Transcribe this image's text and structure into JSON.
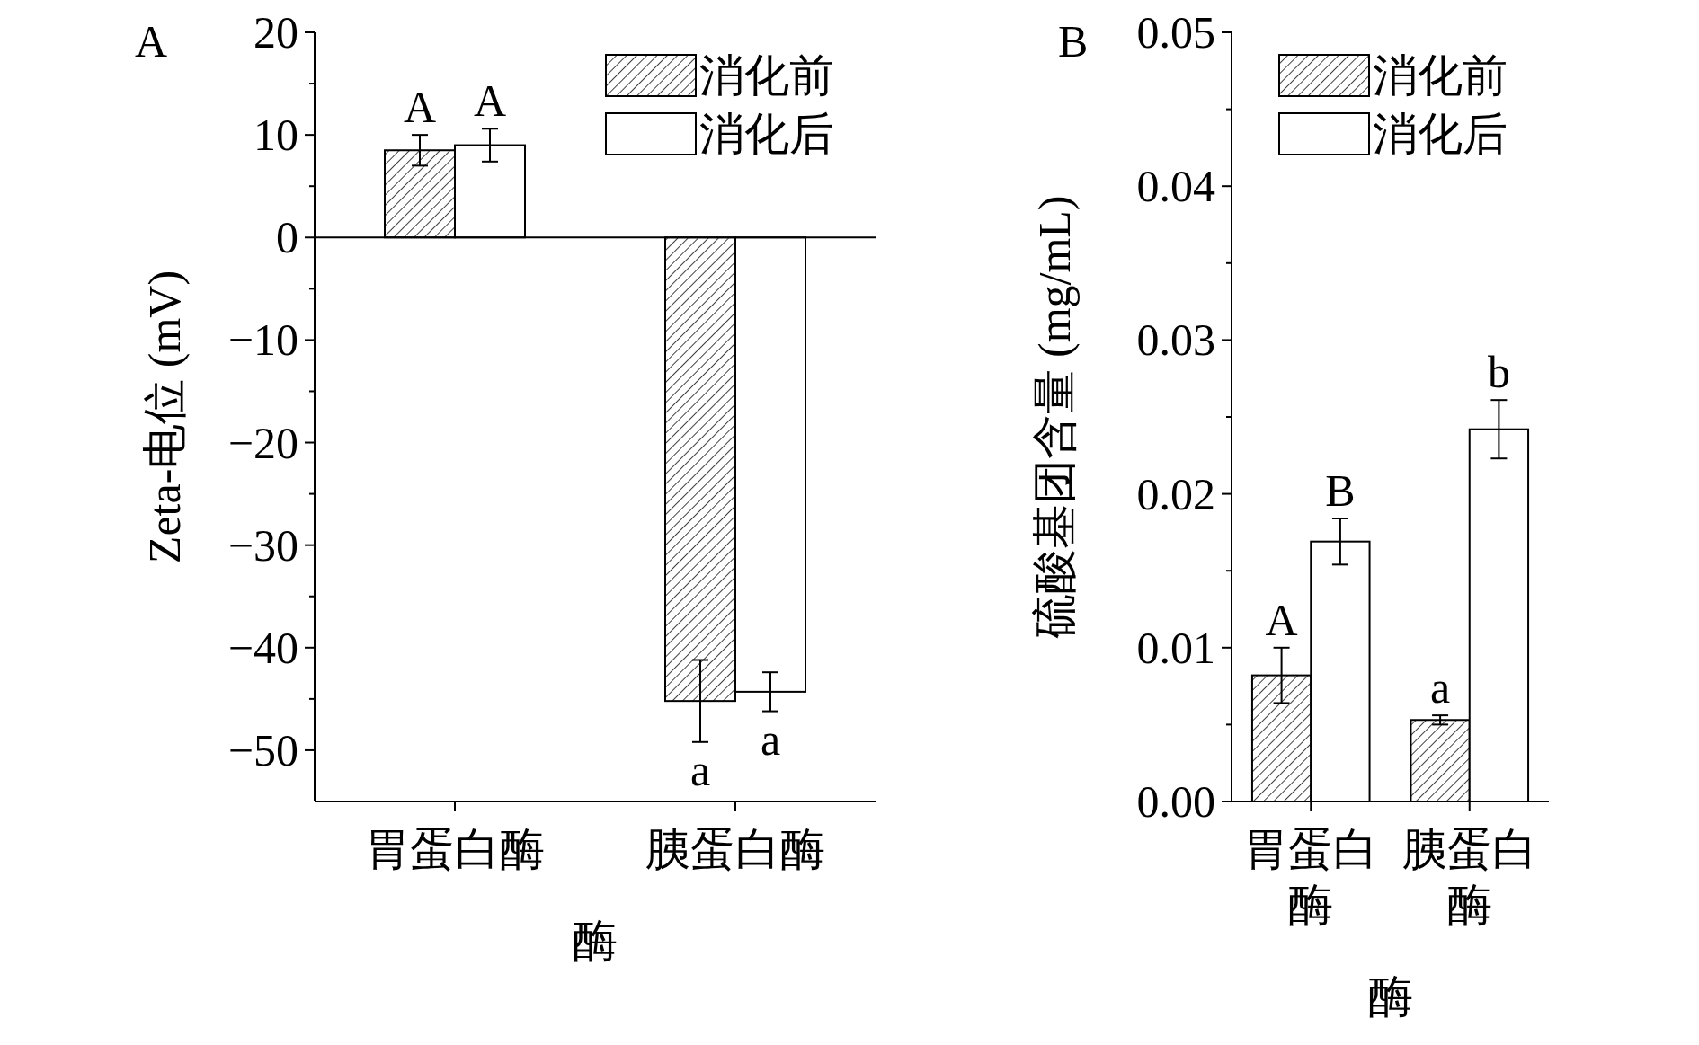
{
  "chart_data": [
    {
      "type": "bar",
      "title": "A",
      "xlabel": "酶",
      "ylabel": "Zeta-电位 (mV)",
      "categories": [
        "胃蛋白酶",
        "胰蛋白酶"
      ],
      "series": [
        {
          "name": "消化前",
          "color": "#000000",
          "values": [
            8.5,
            -45.2
          ],
          "errors": [
            1.5,
            4.0
          ]
        },
        {
          "name": "消化后",
          "color": "#ffffff",
          "values": [
            9.0,
            -44.3
          ],
          "errors": [
            1.6,
            1.9
          ]
        }
      ],
      "ylim": [
        -55,
        20
      ],
      "yticks": [
        20,
        {
          "value": 15,
          "label": null
        },
        10,
        {
          "value": 5,
          "label": null
        },
        0,
        {
          "value": -5,
          "label": null
        },
        {
          "value": -10,
          "label": "−10"
        },
        {
          "value": -15,
          "label": null
        },
        {
          "value": -20,
          "label": "−20"
        },
        {
          "value": -25,
          "label": null
        },
        {
          "value": -30,
          "label": "−30"
        },
        {
          "value": -35,
          "label": null
        },
        {
          "value": -40,
          "label": "−40"
        },
        {
          "value": -45,
          "label": null
        },
        {
          "value": -50,
          "label": "−50"
        }
      ],
      "ref_lines": [
        {
          "axis": "y",
          "value": 0,
          "color": "#000000"
        }
      ],
      "annotations": [
        {
          "text": "A",
          "x": "胃蛋白酶",
          "y": 8.5
        },
        {
          "text": "A",
          "x": "胃蛋白酶",
          "y": 9.0
        },
        {
          "text": "a",
          "x": "胰蛋白酶",
          "y": -45.2
        },
        {
          "text": "a",
          "x": "胰蛋白酶",
          "y": -44.3
        }
      ],
      "legend": "top right"
    },
    {
      "type": "bar",
      "title": "B",
      "xlabel": "酶",
      "ylabel": "硫酸基团含量 (mg/mL)",
      "categories": [
        "胃蛋白酶",
        "胰蛋白酶"
      ],
      "series": [
        {
          "name": "消化前",
          "color": "#000000",
          "values": [
            0.0082,
            0.0053
          ],
          "errors": [
            0.0018,
            0.0003
          ]
        },
        {
          "name": "消化后",
          "color": "#ffffff",
          "values": [
            0.0169,
            0.0242
          ],
          "errors": [
            0.0015,
            0.0019
          ]
        }
      ],
      "ylim": [
        0,
        0.05
      ],
      "yticks": [
        {
          "value": 0,
          "label": "0.00"
        },
        {
          "value": 0.005,
          "label": null
        },
        {
          "value": 0.01,
          "label": "0.01"
        },
        {
          "value": 0.015,
          "label": null
        },
        {
          "value": 0.02,
          "label": "0.02"
        },
        {
          "value": 0.025,
          "label": null
        },
        {
          "value": 0.03,
          "label": "0.03"
        },
        {
          "value": 0.035,
          "label": null
        },
        {
          "value": 0.04,
          "label": "0.04"
        },
        {
          "value": 0.045,
          "label": null
        },
        {
          "value": 0.05,
          "label": "0.05"
        }
      ],
      "annotations": [
        {
          "text": "A",
          "x": "胃蛋白酶",
          "y": 0.0082
        },
        {
          "text": "B",
          "x": "胃蛋白酶",
          "y": 0.0169
        },
        {
          "text": "a",
          "x": "胰蛋白酶",
          "y": 0.0053
        },
        {
          "text": "b",
          "x": "胰蛋白酶",
          "y": 0.0242
        }
      ],
      "legend": "top right"
    }
  ]
}
